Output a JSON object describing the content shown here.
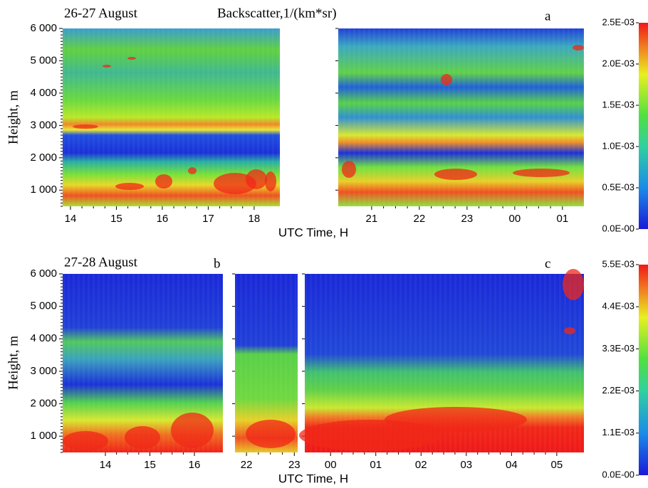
{
  "chart_data": [
    {
      "type": "heatmap",
      "title": "26-27 August",
      "subtitle": "Backscatter,1/(km*sr)",
      "panel_labels": [
        "a"
      ],
      "y_label": "Height, m",
      "x_label": "UTC Time, H",
      "ylim": [
        500,
        6000
      ],
      "yticks": [
        {
          "value": 1000,
          "label": "1 000"
        },
        {
          "value": 2000,
          "label": "2 000"
        },
        {
          "value": 3000,
          "label": "3 000"
        },
        {
          "value": 4000,
          "label": "4 000"
        },
        {
          "value": 5000,
          "label": "5 000"
        },
        {
          "value": 6000,
          "label": "6 000"
        }
      ],
      "pieces": [
        {
          "xlim": [
            13.83,
            18.56
          ],
          "xticks": [
            14,
            15,
            16,
            17,
            18
          ]
        },
        {
          "xlim": [
            20.3,
            25.45
          ],
          "xticks": [
            21,
            22,
            23,
            {
              "value": 24,
              "label": "00"
            },
            {
              "value": 25,
              "label": "01"
            }
          ]
        }
      ],
      "clim": [
        0,
        0.0025
      ],
      "cticks": [
        {
          "value": 0,
          "label": "0.0E-00"
        },
        {
          "value": 0.0005,
          "label": "0.5E-03"
        },
        {
          "value": 0.001,
          "label": "1.0E-03"
        },
        {
          "value": 0.0015,
          "label": "1.5E-03"
        },
        {
          "value": 0.002,
          "label": "2.0E-03"
        },
        {
          "value": 0.0025,
          "label": "2.5E-03"
        }
      ]
    },
    {
      "type": "heatmap",
      "title": "27-28 August",
      "panel_labels": [
        "b",
        "c"
      ],
      "y_label": "Height, m",
      "x_label": "UTC Time, H",
      "ylim": [
        500,
        6000
      ],
      "yticks": [
        {
          "value": 1000,
          "label": "1 000"
        },
        {
          "value": 2000,
          "label": "2 000"
        },
        {
          "value": 3000,
          "label": "3 000"
        },
        {
          "value": 4000,
          "label": "4 000"
        },
        {
          "value": 5000,
          "label": "5 000"
        },
        {
          "value": 6000,
          "label": "6 000"
        }
      ],
      "pieces": [
        {
          "xlim": [
            13.04,
            16.64
          ],
          "xticks": [
            14,
            15,
            16
          ]
        },
        {
          "xlim": [
            21.76,
            23.07
          ],
          "xticks": [
            22,
            23
          ]
        },
        {
          "xlim": [
            23.43,
            29.6
          ],
          "xticks": [
            {
              "value": 24,
              "label": "00"
            },
            {
              "value": 25,
              "label": "01"
            },
            {
              "value": 26,
              "label": "02"
            },
            {
              "value": 27,
              "label": "03"
            },
            {
              "value": 28,
              "label": "04"
            },
            {
              "value": 29,
              "label": "05"
            }
          ]
        }
      ],
      "clim": [
        0,
        0.0055
      ],
      "cticks": [
        {
          "value": 0,
          "label": "0.0E-00"
        },
        {
          "value": 0.0011,
          "label": "1.1E-03"
        },
        {
          "value": 0.0022,
          "label": "2.2E-03"
        },
        {
          "value": 0.0033,
          "label": "3.3E-03"
        },
        {
          "value": 0.0044,
          "label": "4.4E-03"
        },
        {
          "value": 0.0055,
          "label": "5.5E-03"
        }
      ]
    }
  ]
}
